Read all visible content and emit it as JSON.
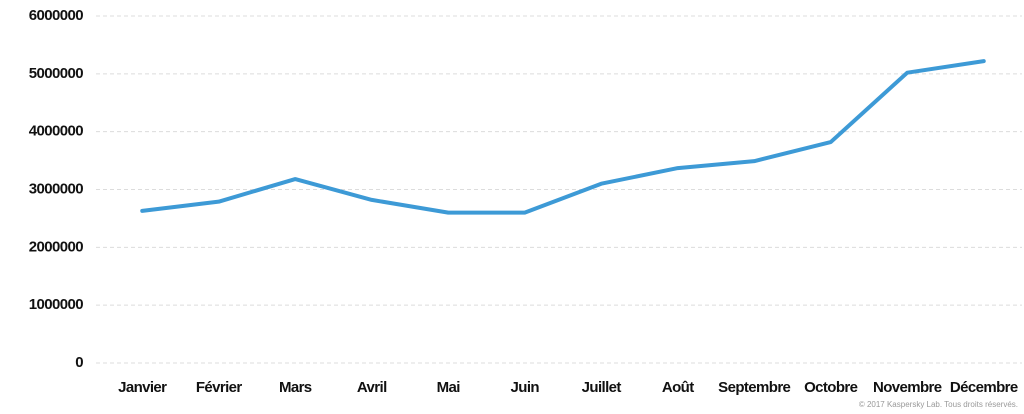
{
  "chart_data": {
    "type": "line",
    "categories": [
      "Janvier",
      "Février",
      "Mars",
      "Avril",
      "Mai",
      "Juin",
      "Juillet",
      "Août",
      "Septembre",
      "Octobre",
      "Novembre",
      "Décembre"
    ],
    "series": [
      {
        "color": "#3d9ad6",
        "values": [
          2630000,
          2790000,
          3180000,
          2820000,
          2600000,
          2600000,
          3100000,
          3370000,
          3490000,
          3820000,
          5020000,
          5220000
        ]
      }
    ],
    "ylim": [
      0,
      6000000
    ],
    "yticks": [
      0,
      1000000,
      2000000,
      3000000,
      4000000,
      5000000,
      6000000
    ],
    "grid": true,
    "annotation": "© 2017 Kaspersky Lab. Tous droits réservés."
  }
}
